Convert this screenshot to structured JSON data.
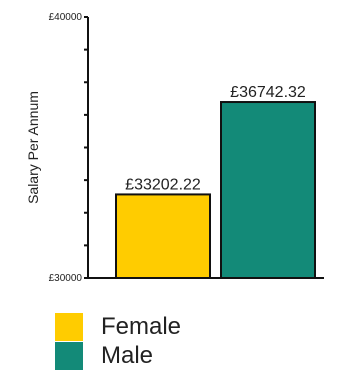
{
  "chart_data": {
    "type": "bar",
    "categories": [
      "Female",
      "Male"
    ],
    "values": [
      33202.22,
      36742.32
    ],
    "data_labels": [
      "£33202.22",
      "£36742.32"
    ],
    "colors": [
      "#FFCC00",
      "#138A78"
    ],
    "ylabel": "Salary Per Annum",
    "xlabel": "",
    "ylim": [
      30000,
      40000
    ],
    "yticks": [
      30000,
      31250,
      32500,
      33750,
      35000,
      36250,
      37500,
      38750,
      40000
    ],
    "ytick_labels": [
      "£30000",
      "",
      "",
      "",
      "",
      "",
      "",
      "",
      "£40000"
    ],
    "legend": {
      "placement": "bottom-left",
      "items": [
        {
          "label": "Female",
          "color": "#FFCC00"
        },
        {
          "label": "Male",
          "color": "#138A78"
        }
      ]
    }
  }
}
